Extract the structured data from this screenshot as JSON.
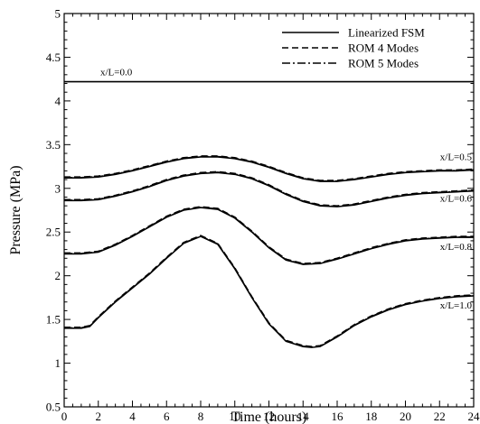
{
  "chart_data": {
    "type": "line",
    "xlabel": "Time (hours)",
    "ylabel": "Pressure (MPa)",
    "xlim": [
      0,
      24
    ],
    "ylim": [
      0.5,
      5
    ],
    "xticks": [
      0,
      2,
      4,
      6,
      8,
      10,
      12,
      14,
      16,
      18,
      20,
      22,
      24
    ],
    "yticks": [
      0.5,
      1,
      1.5,
      2,
      2.5,
      3,
      3.5,
      4,
      4.5,
      5
    ],
    "xtick_labels": [
      "0",
      "2",
      "4",
      "6",
      "8",
      "10",
      "12",
      "14",
      "16",
      "18",
      "20",
      "22",
      "24"
    ],
    "ytick_labels": [
      "0.5",
      "1",
      "1.5",
      "2",
      "2.5",
      "3",
      "3.5",
      "4",
      "4.5",
      "5"
    ],
    "grid": false,
    "legend_position": "top-right",
    "legend": [
      {
        "label": "Linearized FSM",
        "style": "solid"
      },
      {
        "label": "ROM 4 Modes",
        "style": "dashed"
      },
      {
        "label": "ROM 5 Modes",
        "style": "dashdot"
      }
    ],
    "curves": [
      {
        "label": "x/L=0.0",
        "label_anchor": "start",
        "x": [
          0,
          24
        ],
        "y": [
          4.22,
          4.22
        ]
      },
      {
        "label": "x/L=0.5",
        "label_anchor": "end",
        "x": [
          0,
          1,
          2,
          3,
          4,
          5,
          6,
          7,
          8,
          9,
          10,
          11,
          12,
          13,
          14,
          15,
          16,
          17,
          18,
          19,
          20,
          21,
          22,
          23,
          24
        ],
        "y": [
          3.12,
          3.12,
          3.13,
          3.16,
          3.2,
          3.25,
          3.3,
          3.34,
          3.36,
          3.36,
          3.34,
          3.3,
          3.24,
          3.17,
          3.11,
          3.08,
          3.08,
          3.1,
          3.13,
          3.16,
          3.18,
          3.19,
          3.2,
          3.2,
          3.21
        ]
      },
      {
        "label": "x/L=0.6",
        "label_anchor": "end",
        "x": [
          0,
          1,
          2,
          3,
          4,
          5,
          6,
          7,
          8,
          9,
          10,
          11,
          12,
          13,
          14,
          15,
          16,
          17,
          18,
          19,
          20,
          21,
          22,
          23,
          24
        ],
        "y": [
          2.86,
          2.86,
          2.87,
          2.91,
          2.96,
          3.02,
          3.09,
          3.14,
          3.17,
          3.18,
          3.16,
          3.11,
          3.03,
          2.93,
          2.85,
          2.8,
          2.79,
          2.81,
          2.85,
          2.89,
          2.92,
          2.94,
          2.95,
          2.96,
          2.97
        ]
      },
      {
        "label": "x/L=0.8",
        "label_anchor": "end",
        "x": [
          0,
          1,
          2,
          3,
          4,
          5,
          6,
          7,
          8,
          9,
          10,
          11,
          12,
          13,
          14,
          15,
          16,
          17,
          18,
          19,
          20,
          21,
          22,
          23,
          24
        ],
        "y": [
          2.25,
          2.25,
          2.27,
          2.35,
          2.45,
          2.56,
          2.67,
          2.75,
          2.78,
          2.76,
          2.66,
          2.5,
          2.32,
          2.18,
          2.13,
          2.14,
          2.19,
          2.25,
          2.31,
          2.36,
          2.4,
          2.42,
          2.43,
          2.44,
          2.44
        ]
      },
      {
        "label": "x/L=1.0",
        "label_anchor": "end",
        "x": [
          0,
          1,
          1.5,
          2,
          3,
          4,
          5,
          6,
          7,
          8,
          9,
          10,
          11,
          12,
          13,
          14,
          14.5,
          15,
          16,
          17,
          18,
          19,
          20,
          21,
          22,
          23,
          24
        ],
        "y": [
          1.4,
          1.4,
          1.42,
          1.52,
          1.7,
          1.86,
          2.02,
          2.2,
          2.37,
          2.45,
          2.36,
          2.08,
          1.75,
          1.45,
          1.25,
          1.19,
          1.18,
          1.19,
          1.3,
          1.43,
          1.53,
          1.61,
          1.67,
          1.71,
          1.74,
          1.76,
          1.77
        ]
      }
    ]
  }
}
